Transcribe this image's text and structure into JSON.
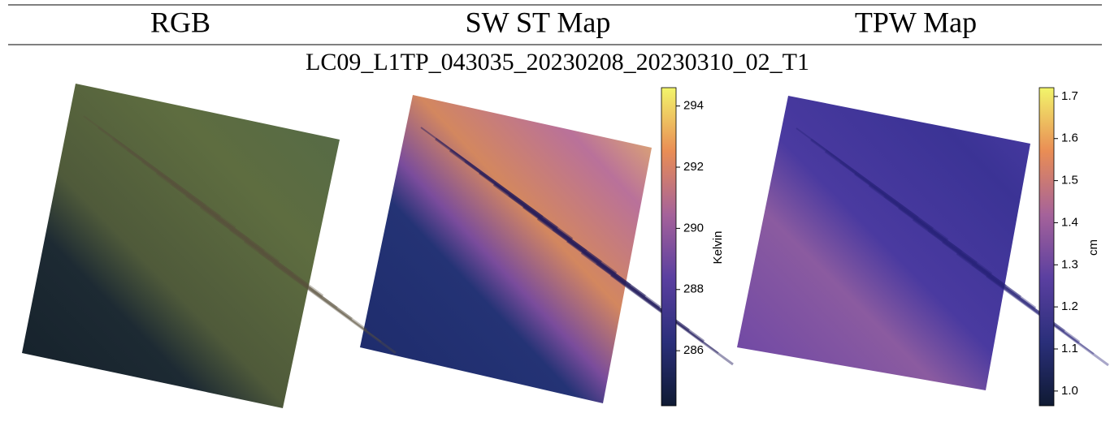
{
  "header": {
    "columns": [
      "RGB",
      "SW ST Map",
      "TPW Map"
    ]
  },
  "subtitle": "LC09_L1TP_043035_20230208_20230310_02_T1",
  "colorbars": [
    {
      "label": "Kelvin",
      "lim": [
        284.2,
        294.6
      ],
      "ticks": [
        286,
        288,
        290,
        292,
        294
      ]
    },
    {
      "label": "cm",
      "lim": [
        0.965,
        1.721
      ],
      "ticks": [
        {
          "value": 1.0,
          "label": "1.0"
        },
        1.1,
        1.2,
        1.3,
        1.4,
        1.5,
        1.6,
        1.7
      ]
    }
  ]
}
